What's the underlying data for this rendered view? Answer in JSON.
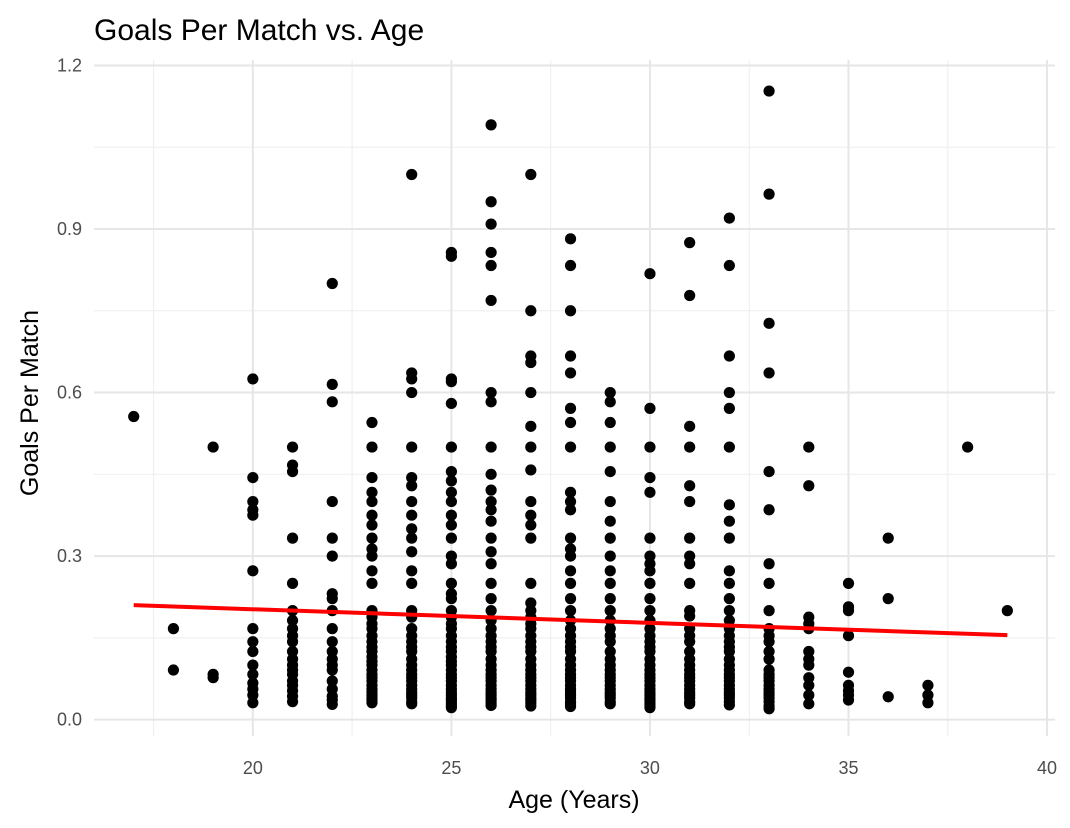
{
  "chart_data": {
    "type": "scatter",
    "title": "Goals Per Match vs. Age",
    "xlabel": "Age (Years)",
    "ylabel": "Goals Per Match",
    "xlim": [
      16.0,
      40.2
    ],
    "ylim": [
      -0.03,
      1.21
    ],
    "x_ticks": [
      20,
      25,
      30,
      35,
      40
    ],
    "y_ticks": [
      0.0,
      0.3,
      0.6,
      0.9,
      1.2
    ],
    "x_tick_labels": [
      "20",
      "25",
      "30",
      "35",
      "40"
    ],
    "y_tick_labels": [
      "0.0",
      "0.3",
      "0.6",
      "0.9",
      "1.2"
    ],
    "grid": true,
    "legend": "none",
    "point_color": "#000000",
    "trend_color": "#ff0000",
    "points_by_age": [
      {
        "x": 17,
        "y": [
          0.556
        ]
      },
      {
        "x": 18,
        "y": [
          0.167,
          0.091
        ]
      },
      {
        "x": 19,
        "y": [
          0.5,
          0.083,
          0.077
        ]
      },
      {
        "x": 20,
        "y": [
          0.625,
          0.444,
          0.4,
          0.385,
          0.375,
          0.273,
          0.167,
          0.143,
          0.125,
          0.1,
          0.083,
          0.067,
          0.056,
          0.045,
          0.031
        ]
      },
      {
        "x": 21,
        "y": [
          0.5,
          0.467,
          0.455,
          0.333,
          0.25,
          0.2,
          0.182,
          0.167,
          0.154,
          0.143,
          0.125,
          0.111,
          0.1,
          0.091,
          0.083,
          0.071,
          0.063,
          0.053,
          0.043,
          0.033
        ]
      },
      {
        "x": 22,
        "y": [
          0.8,
          0.615,
          0.583,
          0.4,
          0.333,
          0.3,
          0.231,
          0.222,
          0.2,
          0.167,
          0.143,
          0.125,
          0.111,
          0.1,
          0.091,
          0.071,
          0.056,
          0.043,
          0.036,
          0.028
        ]
      },
      {
        "x": 23,
        "y": [
          0.545,
          0.5,
          0.444,
          0.417,
          0.4,
          0.375,
          0.357,
          0.333,
          0.313,
          0.3,
          0.273,
          0.25,
          0.2,
          0.188,
          0.176,
          0.167,
          0.154,
          0.143,
          0.133,
          0.125,
          0.115,
          0.107,
          0.1,
          0.091,
          0.083,
          0.077,
          0.071,
          0.063,
          0.056,
          0.05,
          0.045,
          0.04,
          0.036,
          0.031
        ]
      },
      {
        "x": 24,
        "y": [
          1.0,
          0.636,
          0.625,
          0.6,
          0.5,
          0.444,
          0.429,
          0.4,
          0.375,
          0.35,
          0.333,
          0.308,
          0.273,
          0.25,
          0.2,
          0.188,
          0.167,
          0.154,
          0.143,
          0.133,
          0.125,
          0.111,
          0.1,
          0.091,
          0.083,
          0.077,
          0.071,
          0.063,
          0.056,
          0.05,
          0.045,
          0.04,
          0.033,
          0.029
        ]
      },
      {
        "x": 25,
        "y": [
          0.857,
          0.85,
          0.625,
          0.62,
          0.58,
          0.5,
          0.455,
          0.438,
          0.417,
          0.4,
          0.375,
          0.357,
          0.333,
          0.3,
          0.286,
          0.25,
          0.231,
          0.222,
          0.2,
          0.188,
          0.176,
          0.167,
          0.154,
          0.143,
          0.133,
          0.125,
          0.115,
          0.107,
          0.1,
          0.091,
          0.083,
          0.077,
          0.071,
          0.063,
          0.056,
          0.05,
          0.045,
          0.04,
          0.036,
          0.031,
          0.026,
          0.022
        ]
      },
      {
        "x": 26,
        "y": [
          1.091,
          0.95,
          0.909,
          0.857,
          0.833,
          0.769,
          0.6,
          0.583,
          0.5,
          0.45,
          0.421,
          0.4,
          0.385,
          0.364,
          0.333,
          0.308,
          0.286,
          0.25,
          0.222,
          0.2,
          0.182,
          0.167,
          0.154,
          0.143,
          0.133,
          0.125,
          0.111,
          0.1,
          0.091,
          0.083,
          0.077,
          0.071,
          0.063,
          0.056,
          0.05,
          0.045,
          0.04,
          0.036,
          0.031,
          0.026
        ]
      },
      {
        "x": 27,
        "y": [
          1.0,
          0.75,
          0.667,
          0.655,
          0.6,
          0.538,
          0.5,
          0.458,
          0.4,
          0.375,
          0.357,
          0.333,
          0.25,
          0.214,
          0.2,
          0.188,
          0.176,
          0.167,
          0.154,
          0.143,
          0.133,
          0.125,
          0.111,
          0.1,
          0.091,
          0.083,
          0.077,
          0.071,
          0.063,
          0.056,
          0.05,
          0.045,
          0.04,
          0.036,
          0.031,
          0.025
        ]
      },
      {
        "x": 28,
        "y": [
          0.882,
          0.833,
          0.75,
          0.667,
          0.636,
          0.571,
          0.545,
          0.5,
          0.417,
          0.4,
          0.385,
          0.333,
          0.313,
          0.3,
          0.273,
          0.25,
          0.222,
          0.2,
          0.182,
          0.167,
          0.154,
          0.143,
          0.133,
          0.125,
          0.111,
          0.1,
          0.091,
          0.083,
          0.077,
          0.071,
          0.063,
          0.056,
          0.05,
          0.045,
          0.04,
          0.033,
          0.029,
          0.024
        ]
      },
      {
        "x": 29,
        "y": [
          0.6,
          0.583,
          0.545,
          0.5,
          0.455,
          0.4,
          0.364,
          0.333,
          0.3,
          0.273,
          0.25,
          0.222,
          0.2,
          0.182,
          0.167,
          0.154,
          0.143,
          0.125,
          0.111,
          0.1,
          0.091,
          0.083,
          0.077,
          0.071,
          0.063,
          0.056,
          0.05,
          0.045,
          0.04,
          0.033,
          0.029
        ]
      },
      {
        "x": 30,
        "y": [
          0.818,
          0.571,
          0.5,
          0.444,
          0.417,
          0.333,
          0.3,
          0.286,
          0.273,
          0.25,
          0.222,
          0.2,
          0.182,
          0.167,
          0.154,
          0.143,
          0.133,
          0.125,
          0.111,
          0.1,
          0.091,
          0.083,
          0.077,
          0.071,
          0.063,
          0.056,
          0.05,
          0.045,
          0.04,
          0.036,
          0.031,
          0.026,
          0.022
        ]
      },
      {
        "x": 31,
        "y": [
          0.875,
          0.778,
          0.538,
          0.5,
          0.429,
          0.4,
          0.333,
          0.3,
          0.286,
          0.25,
          0.2,
          0.19,
          0.167,
          0.154,
          0.143,
          0.125,
          0.111,
          0.1,
          0.091,
          0.083,
          0.077,
          0.071,
          0.063,
          0.056,
          0.05,
          0.045,
          0.04,
          0.033,
          0.029
        ]
      },
      {
        "x": 32,
        "y": [
          0.92,
          0.833,
          0.667,
          0.6,
          0.571,
          0.5,
          0.394,
          0.364,
          0.333,
          0.273,
          0.25,
          0.222,
          0.2,
          0.182,
          0.167,
          0.154,
          0.143,
          0.133,
          0.125,
          0.111,
          0.1,
          0.091,
          0.083,
          0.077,
          0.071,
          0.063,
          0.056,
          0.05,
          0.045,
          0.04,
          0.033,
          0.027
        ]
      },
      {
        "x": 33,
        "y": [
          1.153,
          0.964,
          0.727,
          0.636,
          0.455,
          0.385,
          0.286,
          0.25,
          0.2,
          0.167,
          0.154,
          0.143,
          0.125,
          0.111,
          0.091,
          0.083,
          0.077,
          0.071,
          0.063,
          0.056,
          0.05,
          0.045,
          0.04,
          0.033,
          0.025,
          0.02
        ]
      },
      {
        "x": 34,
        "y": [
          0.5,
          0.429,
          0.188,
          0.176,
          0.167,
          0.125,
          0.111,
          0.1,
          0.077,
          0.063,
          0.045,
          0.029
        ]
      },
      {
        "x": 35,
        "y": [
          0.25,
          0.207,
          0.2,
          0.154,
          0.087,
          0.063,
          0.053,
          0.045,
          0.036
        ]
      },
      {
        "x": 36,
        "y": [
          0.333,
          0.222,
          0.042
        ]
      },
      {
        "x": 37,
        "y": [
          0.063,
          0.045,
          0.031
        ]
      },
      {
        "x": 38,
        "y": [
          0.5
        ]
      },
      {
        "x": 39,
        "y": [
          0.2
        ]
      }
    ],
    "trend_line": {
      "x": [
        17,
        39
      ],
      "y": [
        0.21,
        0.155
      ]
    }
  }
}
